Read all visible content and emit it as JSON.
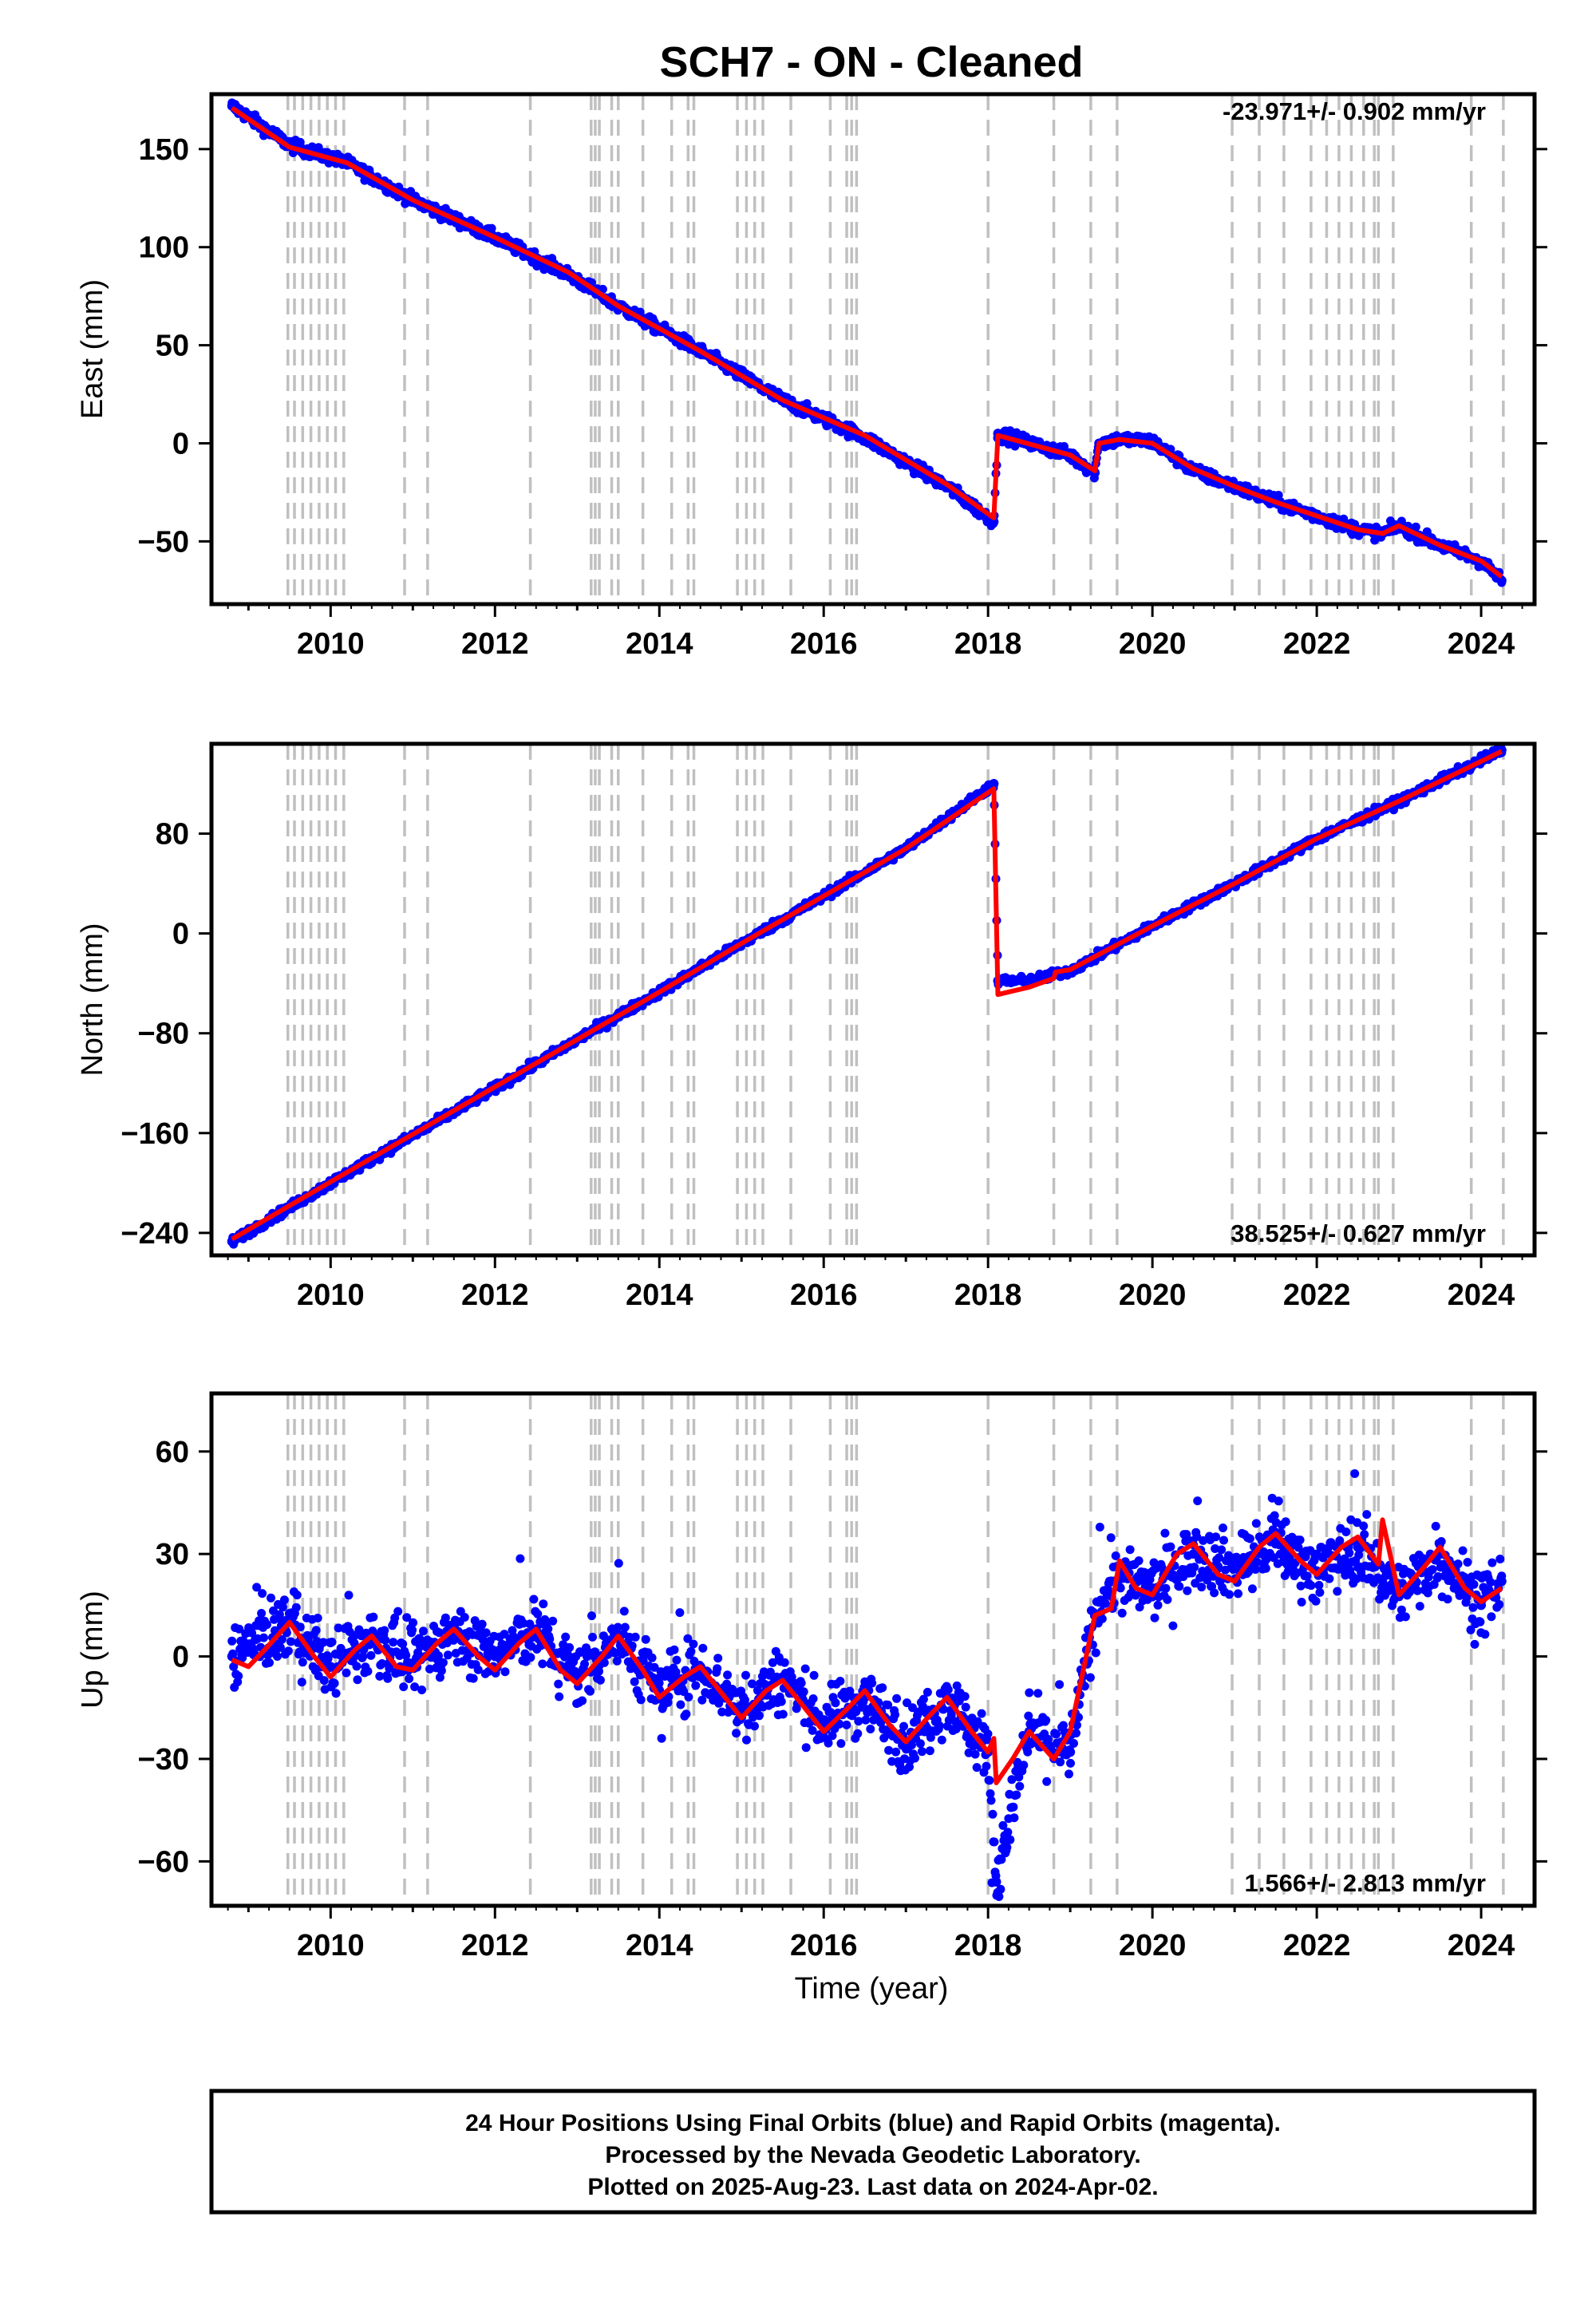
{
  "title": "SCH7  - ON - Cleaned",
  "xlabel": "Time (year)",
  "footer": [
    "24 Hour Positions Using Final Orbits (blue) and Rapid Orbits (magenta).",
    "Processed by the Nevada Geodetic Laboratory.",
    "Plotted on 2025-Aug-23. Last data on 2024-Apr-02."
  ],
  "colors": {
    "data_points": "#0000ff",
    "model_line": "#ff0000",
    "event_lines": "#c0c0c0",
    "frame": "#000000"
  },
  "chart_data": [
    {
      "type": "scatter",
      "panel": "east",
      "ylabel": "East (mm)",
      "rate_label": "-23.971+/- 0.902 mm/yr",
      "xlim": [
        2008.55,
        2024.65
      ],
      "ylim": [
        -82,
        178
      ],
      "xticks": [
        2010,
        2012,
        2014,
        2016,
        2018,
        2020,
        2022,
        2024
      ],
      "yticks": [
        150,
        100,
        50,
        0,
        -50
      ],
      "yticks_display": [
        "150",
        "100",
        "50",
        "0",
        "−50"
      ],
      "series": [
        {
          "style": "points",
          "color": "#0000ff",
          "x": [
            2008.8,
            2009.5,
            2010.2,
            2011.0,
            2012.0,
            2012.9,
            2013.5,
            2014.5,
            2015.5,
            2016.5,
            2017.5,
            2018.07,
            2018.12,
            2019.0,
            2019.3,
            2019.35,
            2019.6,
            2020.0,
            2020.5,
            2021.0,
            2021.5,
            2022.0,
            2022.5,
            2022.8,
            2023.0,
            2023.5,
            2024.0,
            2024.25
          ],
          "y": [
            172,
            152,
            143,
            124,
            105,
            86,
            70,
            47,
            22,
            3,
            -22,
            -40,
            5,
            -6,
            -15,
            0,
            2,
            1,
            -14,
            -22,
            -30,
            -37,
            -44,
            -46,
            -42,
            -52,
            -60,
            -70
          ]
        },
        {
          "style": "line",
          "color": "#ff0000",
          "x": [
            2008.8,
            2009.5,
            2010.2,
            2011.0,
            2012.0,
            2012.9,
            2013.5,
            2014.5,
            2015.5,
            2016.5,
            2017.5,
            2018.07,
            2018.12,
            2019.0,
            2019.3,
            2019.35,
            2019.6,
            2020.0,
            2020.5,
            2021.0,
            2021.5,
            2022.0,
            2022.5,
            2022.8,
            2023.0,
            2023.5,
            2024.0,
            2024.25
          ],
          "y": [
            171,
            151,
            143,
            124,
            105,
            87,
            70,
            47,
            22,
            4,
            -21,
            -38,
            4,
            -6,
            -14,
            0,
            2,
            0,
            -13,
            -22,
            -30,
            -37,
            -44,
            -46,
            -42,
            -52,
            -60,
            -68
          ]
        }
      ]
    },
    {
      "type": "scatter",
      "panel": "north",
      "ylabel": "North (mm)",
      "rate_label": "38.525+/- 0.627 mm/yr",
      "xlim": [
        2008.55,
        2024.65
      ],
      "ylim": [
        -258,
        152
      ],
      "xticks": [
        2010,
        2012,
        2014,
        2016,
        2018,
        2020,
        2022,
        2024
      ],
      "yticks": [
        80,
        0,
        -80,
        -160,
        -240
      ],
      "yticks_display": [
        "80",
        "0",
        "−80",
        "−160",
        "−240"
      ],
      "series": [
        {
          "style": "points",
          "color": "#0000ff",
          "x": [
            2008.8,
            2010.0,
            2011.0,
            2012.0,
            2013.0,
            2014.0,
            2015.0,
            2016.0,
            2017.0,
            2018.07,
            2018.12,
            2018.5,
            2019.0,
            2020.0,
            2021.0,
            2022.0,
            2023.0,
            2024.25
          ],
          "y": [
            -247,
            -200,
            -162,
            -124,
            -85,
            -47,
            -8,
            30,
            68,
            120,
            -38,
            -38,
            -30,
            6,
            40,
            76,
            106,
            147
          ]
        },
        {
          "style": "line",
          "color": "#ff0000",
          "x": [
            2008.8,
            2010.0,
            2011.0,
            2012.0,
            2013.0,
            2014.0,
            2015.0,
            2016.0,
            2017.0,
            2018.07,
            2018.12,
            2018.5,
            2018.8,
            2018.82,
            2019.0,
            2020.0,
            2021.0,
            2022.0,
            2023.0,
            2024.25
          ],
          "y": [
            -245,
            -199,
            -161,
            -123,
            -85,
            -47,
            -8,
            30,
            68,
            116,
            -49,
            -43,
            -36,
            -31,
            -29,
            6,
            40,
            76,
            106,
            146
          ]
        }
      ]
    },
    {
      "type": "scatter",
      "panel": "up",
      "ylabel": "Up (mm)",
      "rate_label": "1.566+/- 2.813 mm/yr",
      "xlim": [
        2008.55,
        2024.65
      ],
      "ylim": [
        -73,
        77
      ],
      "xticks": [
        2010,
        2012,
        2014,
        2016,
        2018,
        2020,
        2022,
        2024
      ],
      "yticks": [
        60,
        30,
        0,
        -30,
        -60
      ],
      "yticks_display": [
        "60",
        "30",
        "0",
        "−30",
        "−60"
      ],
      "series": [
        {
          "style": "points",
          "color": "#0000ff",
          "x": [
            2008.8,
            2009.5,
            2010.0,
            2010.5,
            2011.0,
            2011.5,
            2012.0,
            2012.5,
            2013.0,
            2013.5,
            2014.0,
            2014.5,
            2015.0,
            2015.5,
            2016.0,
            2016.5,
            2017.0,
            2017.5,
            2018.0,
            2018.1,
            2018.5,
            2019.0,
            2019.3,
            2019.5,
            2020.0,
            2020.5,
            2021.0,
            2021.5,
            2022.0,
            2022.5,
            2023.0,
            2023.5,
            2024.0,
            2024.25
          ],
          "y": [
            0,
            10,
            -3,
            5,
            -2,
            7,
            0,
            8,
            -6,
            6,
            -10,
            -3,
            -16,
            -6,
            -20,
            -12,
            -25,
            -12,
            -28,
            -66,
            -22,
            -28,
            12,
            22,
            20,
            30,
            26,
            33,
            25,
            32,
            18,
            30,
            15,
            22
          ]
        },
        {
          "style": "line",
          "color": "#ff0000",
          "x": [
            2008.8,
            2009.0,
            2009.2,
            2009.5,
            2009.8,
            2010.0,
            2010.3,
            2010.5,
            2010.8,
            2011.0,
            2011.3,
            2011.5,
            2011.8,
            2012.0,
            2012.3,
            2012.5,
            2012.8,
            2013.0,
            2013.3,
            2013.5,
            2013.8,
            2014.0,
            2014.3,
            2014.5,
            2014.8,
            2015.0,
            2015.3,
            2015.5,
            2015.8,
            2016.0,
            2016.3,
            2016.5,
            2016.8,
            2017.0,
            2017.3,
            2017.5,
            2017.8,
            2018.0,
            2018.07,
            2018.1,
            2018.3,
            2018.5,
            2018.8,
            2019.0,
            2019.3,
            2019.5,
            2019.6,
            2019.8,
            2020.0,
            2020.3,
            2020.5,
            2020.8,
            2021.0,
            2021.3,
            2021.5,
            2021.8,
            2022.0,
            2022.3,
            2022.5,
            2022.75,
            2022.8,
            2023.0,
            2023.3,
            2023.5,
            2023.8,
            2024.0,
            2024.25
          ],
          "y": [
            -1,
            -3,
            2,
            10,
            0,
            -6,
            2,
            6,
            -3,
            -4,
            4,
            8,
            0,
            -4,
            4,
            8,
            -4,
            -8,
            0,
            6,
            -4,
            -12,
            -6,
            -3,
            -12,
            -18,
            -10,
            -7,
            -16,
            -22,
            -15,
            -10,
            -20,
            -25,
            -17,
            -12,
            -22,
            -28,
            -24,
            -37,
            -30,
            -22,
            -30,
            -22,
            12,
            14,
            28,
            20,
            18,
            30,
            33,
            24,
            22,
            32,
            36,
            28,
            24,
            32,
            35,
            27,
            40,
            18,
            26,
            32,
            20,
            16,
            20
          ]
        }
      ]
    }
  ],
  "event_years": [
    2009.48,
    2009.56,
    2009.66,
    2009.76,
    2009.86,
    2009.96,
    2010.06,
    2010.16,
    2010.9,
    2011.18,
    2012.43,
    2013.17,
    2013.22,
    2013.27,
    2013.42,
    2013.5,
    2013.8,
    2014.15,
    2014.35,
    2014.42,
    2014.95,
    2015.06,
    2015.16,
    2015.26,
    2015.6,
    2016.08,
    2016.28,
    2016.34,
    2016.4,
    2018.0,
    2018.8,
    2019.25,
    2019.57,
    2020.97,
    2021.3,
    2021.6,
    2021.93,
    2022.12,
    2022.27,
    2022.42,
    2022.57,
    2022.7,
    2022.75,
    2022.93,
    2023.88,
    2024.27
  ]
}
